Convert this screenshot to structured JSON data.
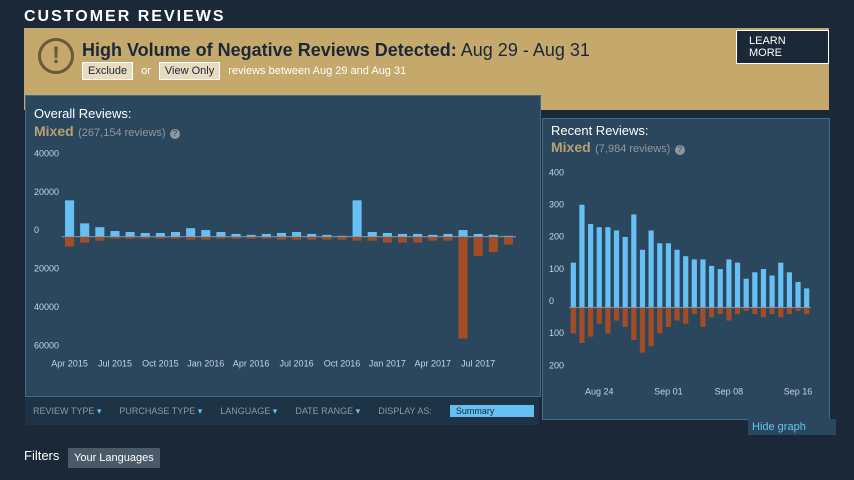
{
  "header": {
    "title": "CUSTOMER REVIEWS"
  },
  "banner": {
    "title": "High Volume of Negative Reviews Detected:",
    "dates": "Aug 29 - Aug 31",
    "exclude": "Exclude",
    "or": "or",
    "view_only": "View Only",
    "note": "reviews between Aug 29 and Aug 31",
    "learn_more": "LEARN MORE"
  },
  "overall": {
    "label": "Overall Reviews:",
    "rating": "Mixed",
    "count": "(267,154 reviews)",
    "help": "?"
  },
  "recent": {
    "label": "Recent Reviews:",
    "rating": "Mixed",
    "count": "(7,984 reviews)",
    "help": "?"
  },
  "controls": {
    "dropdowns": [
      "REVIEW TYPE",
      "PURCHASE TYPE",
      "LANGUAGE",
      "DATE RANGE"
    ],
    "display_as": "DISPLAY AS:",
    "display_value": "Summary",
    "hide_graph": "Hide graph"
  },
  "filters": {
    "label": "Filters",
    "chip": "Your Languages"
  },
  "chart_data": [
    {
      "type": "bar",
      "categories": [
        "Apr 2015",
        null,
        null,
        "Jul 2015",
        null,
        null,
        "Oct 2015",
        null,
        null,
        "Jan 2016",
        null,
        null,
        "Apr 2016",
        null,
        null,
        "Jul 2016",
        null,
        null,
        "Oct 2016",
        null,
        null,
        "Jan 2017",
        null,
        null,
        "Apr 2017",
        null,
        null,
        "Jul 2017",
        null,
        null
      ],
      "series": [
        {
          "color": "#66c0f4",
          "values": [
            19000,
            7000,
            5000,
            3000,
            2500,
            2000,
            2000,
            2500,
            4500,
            3500,
            2500,
            1500,
            1000,
            1500,
            2000,
            2500,
            1500,
            1000,
            500,
            19000,
            2500,
            2000,
            1500,
            1500,
            1000,
            1500,
            3500,
            1500,
            1000,
            500
          ]
        },
        {
          "color": "#a34c25",
          "values": [
            -5000,
            -3000,
            -2000,
            -1000,
            -1000,
            -1000,
            -1000,
            -1000,
            -1500,
            -1500,
            -1000,
            -1000,
            -1000,
            -1000,
            -1500,
            -1500,
            -1500,
            -1500,
            -1500,
            -2000,
            -2000,
            -3000,
            -3000,
            -3000,
            -2000,
            -2000,
            -53000,
            -10000,
            -8000,
            -4000
          ]
        }
      ],
      "ylim": [
        -60000,
        40000
      ],
      "yticks": [
        40000,
        20000,
        0,
        {
          "value": -20000,
          "label": "20000"
        },
        {
          "value": -40000,
          "label": "40000"
        },
        {
          "value": -60000,
          "label": "60000"
        }
      ],
      "grid": false
    },
    {
      "type": "bar",
      "categories": [
        null,
        null,
        null,
        "Aug 24",
        null,
        null,
        null,
        null,
        null,
        null,
        null,
        "Sep 01",
        null,
        null,
        null,
        null,
        null,
        null,
        "Sep 08",
        null,
        null,
        null,
        null,
        null,
        null,
        null,
        "Sep 16",
        null
      ],
      "series": [
        {
          "color": "#66c0f4",
          "values": [
            140,
            320,
            260,
            250,
            250,
            240,
            220,
            290,
            180,
            240,
            200,
            200,
            180,
            160,
            150,
            150,
            130,
            120,
            150,
            140,
            90,
            110,
            120,
            100,
            140,
            110,
            80,
            60
          ]
        },
        {
          "color": "#a34c25",
          "values": [
            -80,
            -110,
            -90,
            -50,
            -80,
            -40,
            -60,
            -100,
            -140,
            -120,
            -80,
            -60,
            -40,
            -50,
            -20,
            -60,
            -30,
            -20,
            -40,
            -20,
            -10,
            -20,
            -30,
            -20,
            -30,
            -20,
            -10,
            -20
          ]
        }
      ],
      "ylim": [
        -200,
        400
      ],
      "yticks": [
        400,
        300,
        200,
        100,
        0,
        {
          "value": -100,
          "label": "100"
        },
        {
          "value": -200,
          "label": "200"
        }
      ],
      "grid": false
    }
  ]
}
